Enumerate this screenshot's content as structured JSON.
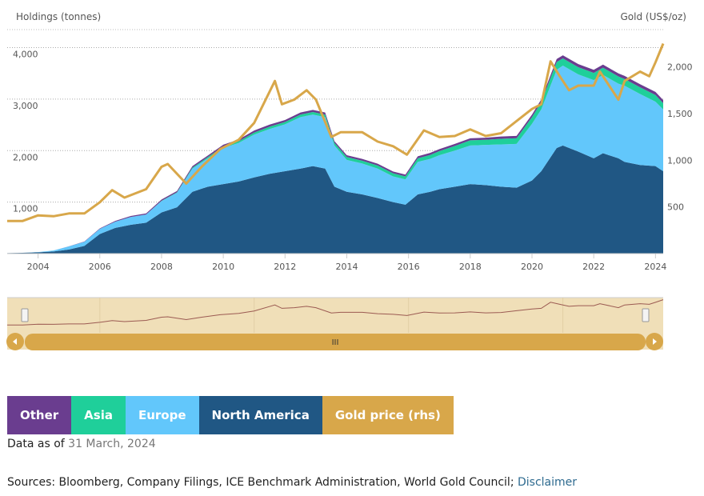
{
  "colors": {
    "other": "#6a3d8f",
    "asia": "#1fcf9a",
    "europe": "#62c7fb",
    "north_america": "#205784",
    "gold": "#d8a74a",
    "navigator_bg": "#f0dfb8",
    "navigator_line": "#9b5a52",
    "scrollbar": "#d8a74a"
  },
  "legend": [
    {
      "key": "other",
      "label": "Other",
      "color": "#6a3d8f"
    },
    {
      "key": "asia",
      "label": "Asia",
      "color": "#1fcf9a"
    },
    {
      "key": "europe",
      "label": "Europe",
      "color": "#62c7fb"
    },
    {
      "key": "north_america",
      "label": "North America",
      "color": "#205784"
    },
    {
      "key": "gold",
      "label": "Gold price (rhs)",
      "color": "#d8a74a"
    }
  ],
  "as_of": {
    "prefix": "Data as of ",
    "date": "31 March, 2024"
  },
  "sources": {
    "text": "Sources: Bloomberg, Company Filings, ICE Benchmark Administration, World Gold Council; ",
    "link": "Disclaimer"
  },
  "navigator": {
    "handle_label": "III",
    "left_arrow": "left-arrow",
    "right_arrow": "right-arrow"
  },
  "chart_data": {
    "type": "area",
    "ylabel": "Holdings (tonnes)",
    "y2label": "Gold (US$/oz)",
    "xlim": [
      2003.0,
      2024.25
    ],
    "ylim": [
      0,
      4350
    ],
    "y2lim": [
      0,
      2400
    ],
    "x_ticks": [
      "2004",
      "2006",
      "2008",
      "2010",
      "2012",
      "2014",
      "2016",
      "2018",
      "2020",
      "2022",
      "2024"
    ],
    "y_ticks": [
      "1,000",
      "2,000",
      "3,000",
      "4,000"
    ],
    "y2_ticks": [
      "500",
      "1,000",
      "1,500",
      "2,000"
    ],
    "grid": true,
    "stacking": "normal",
    "x": [
      2003.0,
      2003.5,
      2004.0,
      2004.5,
      2005.0,
      2005.5,
      2006.0,
      2006.5,
      2007.0,
      2007.5,
      2008.0,
      2008.5,
      2009.0,
      2009.5,
      2010.0,
      2010.5,
      2011.0,
      2011.5,
      2012.0,
      2012.5,
      2012.9,
      2013.3,
      2013.6,
      2014.0,
      2014.5,
      2015.0,
      2015.5,
      2015.9,
      2016.3,
      2016.7,
      2017.0,
      2017.5,
      2018.0,
      2018.5,
      2019.0,
      2019.5,
      2020.0,
      2020.3,
      2020.8,
      2021.0,
      2021.5,
      2022.0,
      2022.3,
      2022.8,
      2023.0,
      2023.5,
      2024.0,
      2024.25
    ],
    "series": [
      {
        "name": "North America",
        "values": [
          10,
          15,
          25,
          40,
          80,
          150,
          380,
          500,
          560,
          600,
          800,
          900,
          1200,
          1300,
          1350,
          1400,
          1480,
          1550,
          1600,
          1650,
          1700,
          1650,
          1300,
          1200,
          1150,
          1080,
          1000,
          950,
          1150,
          1200,
          1250,
          1300,
          1350,
          1330,
          1300,
          1280,
          1420,
          1600,
          2050,
          2100,
          1980,
          1850,
          1950,
          1850,
          1780,
          1720,
          1700,
          1600
        ]
      },
      {
        "name": "Europe",
        "values": [
          0,
          0,
          5,
          20,
          60,
          80,
          100,
          120,
          150,
          160,
          220,
          280,
          450,
          550,
          700,
          750,
          830,
          870,
          910,
          1000,
          1000,
          1000,
          800,
          620,
          600,
          570,
          500,
          490,
          630,
          640,
          660,
          700,
          750,
          780,
          820,
          850,
          1100,
          1200,
          1520,
          1550,
          1500,
          1520,
          1520,
          1450,
          1480,
          1380,
          1250,
          1200
        ]
      },
      {
        "name": "Asia",
        "values": [
          0,
          0,
          0,
          0,
          0,
          0,
          0,
          0,
          0,
          0,
          5,
          10,
          20,
          25,
          30,
          30,
          40,
          45,
          45,
          50,
          50,
          50,
          50,
          55,
          55,
          60,
          60,
          60,
          70,
          75,
          80,
          90,
          100,
          100,
          110,
          110,
          130,
          140,
          150,
          140,
          140,
          140,
          140,
          140,
          130,
          130,
          130,
          120
        ]
      },
      {
        "name": "Other",
        "values": [
          0,
          0,
          0,
          0,
          2,
          5,
          10,
          15,
          20,
          20,
          25,
          25,
          30,
          30,
          35,
          35,
          40,
          40,
          40,
          40,
          40,
          40,
          35,
          35,
          35,
          35,
          35,
          35,
          40,
          40,
          40,
          40,
          40,
          40,
          45,
          45,
          50,
          55,
          60,
          60,
          60,
          60,
          60,
          60,
          60,
          60,
          60,
          60
        ]
      }
    ],
    "gold_price": {
      "name": "Gold price (rhs)",
      "x": [
        2003.0,
        2003.5,
        2004.0,
        2004.5,
        2005.0,
        2005.5,
        2006.0,
        2006.4,
        2006.8,
        2007.5,
        2008.0,
        2008.2,
        2008.8,
        2009.3,
        2009.9,
        2010.5,
        2011.0,
        2011.67,
        2011.9,
        2012.3,
        2012.7,
        2013.0,
        2013.5,
        2013.8,
        2014.5,
        2015.0,
        2015.5,
        2015.95,
        2016.5,
        2017.0,
        2017.5,
        2018.0,
        2018.5,
        2019.0,
        2019.5,
        2020.0,
        2020.3,
        2020.6,
        2020.9,
        2021.2,
        2021.5,
        2022.0,
        2022.2,
        2022.8,
        2023.0,
        2023.5,
        2023.8,
        2024.0,
        2024.25
      ],
      "values": [
        350,
        350,
        410,
        400,
        430,
        430,
        550,
        680,
        600,
        690,
        930,
        960,
        750,
        930,
        1120,
        1220,
        1400,
        1850,
        1600,
        1650,
        1750,
        1650,
        1250,
        1300,
        1300,
        1200,
        1150,
        1060,
        1320,
        1250,
        1260,
        1330,
        1260,
        1290,
        1420,
        1550,
        1600,
        2060,
        1900,
        1750,
        1800,
        1800,
        1950,
        1650,
        1850,
        1950,
        1900,
        2050,
        2250
      ]
    }
  }
}
